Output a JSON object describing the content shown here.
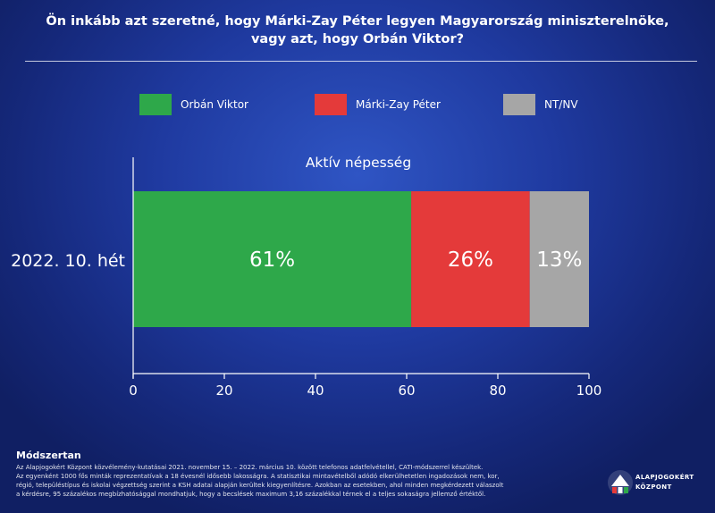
{
  "title": {
    "line1": "Ön inkább azt szeretné, hogy Márki-Zay Péter legyen Magyarország miniszterelnöke,",
    "line2": "vagy azt, hogy Orbán Viktor?"
  },
  "legend": [
    {
      "label": "Orbán Viktor",
      "color": "#2ea84a"
    },
    {
      "label": "Márki-Zay Péter",
      "color": "#e43a3a"
    },
    {
      "label": "NT/NV",
      "color": "#a6a6a6"
    }
  ],
  "chart_data": {
    "type": "bar",
    "orientation": "horizontal",
    "stacked": true,
    "title": "Aktív népesség",
    "categories": [
      "2022. 10. hét"
    ],
    "series": [
      {
        "name": "Orbán Viktor",
        "values": [
          61
        ],
        "labels": [
          "61%"
        ],
        "color": "#2ea84a"
      },
      {
        "name": "Márki-Zay Péter",
        "values": [
          26
        ],
        "labels": [
          "26%"
        ],
        "color": "#e43a3a"
      },
      {
        "name": "NT/NV",
        "values": [
          13
        ],
        "labels": [
          "13%"
        ],
        "color": "#a6a6a6"
      }
    ],
    "xlim": [
      0,
      100
    ],
    "xticks": [
      0,
      20,
      40,
      60,
      80,
      100
    ],
    "grid": false,
    "legend_position": "top"
  },
  "methodology": {
    "title": "Módszertan",
    "lines": [
      "Az Alapjogokért Központ közvélemény-kutatásai 2021. november 15. – 2022. március 10. között telefonos adatfelvétellel, CATI-módszerrel készültek.",
      "Az egyenként 1000 fős minták reprezentatívak a 18 évesnél idősebb lakosságra. A statisztikai mintavételből adódó elkerülhetetlen ingadozások nem, kor,",
      "régió, településtípus és iskolai végzettség szerint a KSH adatai alapján kerültek kiegyenlítésre. Azokban az esetekben, ahol minden megkérdezett válaszolt",
      "a kérdésre, 95 százalékos megbízhatósággal mondhatjuk, hogy a becslések maximum 3,16 százalékkal térnek el a teljes sokaságra jellemző értéktől."
    ]
  },
  "logo": {
    "line1": "ALAPJOGOKÉRT",
    "line2": "KÖZPONT",
    "colors": [
      "#e43a3a",
      "#2ea84a",
      "#ffffff"
    ]
  }
}
